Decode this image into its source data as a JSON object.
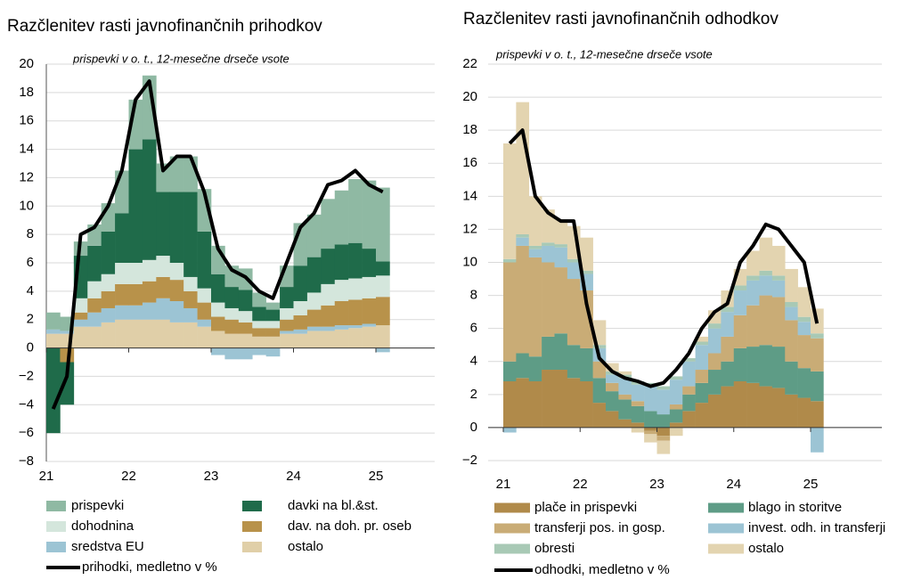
{
  "chart_data": [
    {
      "type": "stacked_bar",
      "title": "Razčlenitev rasti javnofinančnih prihodkov",
      "subtitle": "prispevki v o. t., 12-mesečne drseče vsote",
      "categories": [
        "21",
        null,
        null,
        null,
        null,
        null,
        "22",
        null,
        null,
        null,
        null,
        null,
        "23",
        null,
        null,
        null,
        null,
        null,
        "24",
        null,
        null,
        null,
        null,
        null,
        "25"
      ],
      "ylim": [
        -8,
        20
      ],
      "yticks": [
        {
          "value": -8,
          "label": "−8"
        },
        {
          "value": -6,
          "label": "−6"
        },
        {
          "value": -4,
          "label": "−4"
        },
        {
          "value": -2,
          "label": "−2"
        },
        0,
        2,
        4,
        6,
        8,
        10,
        12,
        14,
        16,
        18,
        20
      ],
      "grid": true,
      "series": [
        {
          "name": "ostalo",
          "color": "#e0cfa8",
          "values": [
            1,
            1,
            1.5,
            1.5,
            1.8,
            2,
            2,
            2,
            2,
            1.8,
            1.8,
            1.5,
            1.2,
            1,
            1,
            0.8,
            0.8,
            1,
            1,
            1.2,
            1.2,
            1.3,
            1.4,
            1.5,
            1.6
          ]
        },
        {
          "name": "sredstva EU",
          "color": "#9cc4d4",
          "values": [
            0.3,
            0.2,
            0.5,
            1,
            1,
            1,
            1,
            1.2,
            1.5,
            1.5,
            1,
            0.5,
            -0.5,
            -0.8,
            -0.8,
            -0.5,
            -0.6,
            0.2,
            0.3,
            0.3,
            0.3,
            0.3,
            0.2,
            0.2,
            -0.3
          ]
        },
        {
          "name": "dav. na doh. pr. oseb",
          "color": "#b8924a",
          "values": [
            0,
            -1,
            0.5,
            1,
            1.2,
            1.5,
            1.5,
            1.5,
            1.5,
            1.5,
            1.2,
            1.2,
            1,
            1,
            0.8,
            0.6,
            0.6,
            0.8,
            1,
            1.2,
            1.5,
            1.7,
            1.8,
            1.8,
            2
          ]
        },
        {
          "name": "dohodnina",
          "color": "#d4e6dc",
          "values": [
            0,
            0,
            1,
            1.2,
            1.2,
            1.5,
            1.5,
            1.5,
            1.5,
            1.2,
            1,
            1,
            1,
            0.8,
            0.8,
            0.5,
            0.5,
            0.8,
            1,
            1.2,
            1.5,
            1.5,
            1.5,
            1.5,
            1.5
          ]
        },
        {
          "name": "davki na bl.&st.",
          "color": "#1f6b4a",
          "values": [
            -6,
            -3,
            3,
            2.5,
            3,
            3.5,
            8,
            8.5,
            4.5,
            5,
            6,
            4,
            2,
            1.5,
            1.5,
            1,
            0.8,
            1.5,
            2.5,
            2.5,
            2.5,
            2.5,
            2.5,
            2,
            1
          ]
        },
        {
          "name": "prispevki",
          "color": "#8fb9a3",
          "values": [
            1.2,
            1,
            1,
            1.5,
            2,
            3,
            3.5,
            4.5,
            2,
            2.5,
            2.5,
            3,
            2,
            1.5,
            1.5,
            1,
            0.5,
            1.5,
            3,
            3,
            3.5,
            3.8,
            4.5,
            4.8,
            5.2
          ]
        },
        {
          "name": "prihodki, medletno v %",
          "type": "line",
          "color": "#000000",
          "values": [
            -4.3,
            -2,
            8,
            8.5,
            10,
            12.5,
            17.5,
            18.8,
            12.5,
            13.5,
            13.5,
            11,
            7,
            5.5,
            5,
            4,
            3.5,
            6,
            8.5,
            9.5,
            11.5,
            11.8,
            12.5,
            11.5,
            11
          ]
        }
      ]
    },
    {
      "type": "stacked_bar",
      "title": "Razčlenitev rasti javnofinančnih odhodkov",
      "subtitle": "prispevki v o. t., 12-mesečne drseče vsote",
      "categories": [
        "21",
        null,
        null,
        null,
        null,
        null,
        "22",
        null,
        null,
        null,
        null,
        null,
        "23",
        null,
        null,
        null,
        null,
        null,
        "24",
        null,
        null,
        null,
        null,
        null,
        "25"
      ],
      "ylim": [
        -2,
        22
      ],
      "yticks": [
        {
          "value": -2,
          "label": "−2"
        },
        0,
        2,
        4,
        6,
        8,
        10,
        12,
        14,
        16,
        18,
        20,
        22
      ],
      "grid": true,
      "series": [
        {
          "name": "plače in prispevki",
          "color": "#b08a4a",
          "values": [
            2.8,
            3,
            2.8,
            3.5,
            3.5,
            3,
            2.8,
            1.5,
            1,
            0.5,
            0.3,
            -0.2,
            -0.5,
            0.3,
            1,
            1.5,
            2,
            2.5,
            2.8,
            2.7,
            2.5,
            2.4,
            2,
            1.8,
            1.6
          ]
        },
        {
          "name": "blago in storitve",
          "color": "#5e9c86",
          "values": [
            1.2,
            1.5,
            1.5,
            2,
            2.2,
            2,
            2,
            1.5,
            1.2,
            1.2,
            1,
            1,
            0.8,
            0.8,
            1,
            1.2,
            1.5,
            1.5,
            2,
            2.2,
            2.5,
            2.5,
            2,
            1.8,
            1.8
          ]
        },
        {
          "name": "transferji pos. in gosp.",
          "color": "#c9ac76",
          "values": [
            6,
            6.5,
            6,
            4.5,
            4,
            4,
            3.5,
            1,
            0.5,
            0.3,
            0.3,
            -0.2,
            -0.3,
            0.3,
            0.5,
            0.8,
            1,
            1.5,
            2,
            2.5,
            3,
            3,
            2.5,
            2,
            2
          ]
        },
        {
          "name": "invest. odh. in transferji",
          "color": "#9cc4d4",
          "values": [
            -0.3,
            0.5,
            0.5,
            1,
            1.2,
            1,
            1,
            0.8,
            0.5,
            1,
            1,
            1.5,
            1.5,
            1.5,
            1.5,
            1.5,
            1.5,
            1.5,
            1.5,
            1.5,
            1.2,
            1,
            0.8,
            0.8,
            -1.5
          ]
        },
        {
          "name": "obresti",
          "color": "#a8c9b5",
          "values": [
            0.2,
            0.2,
            0.2,
            0.2,
            0.2,
            0.2,
            0.2,
            0.2,
            0.2,
            0.2,
            0.2,
            0.2,
            0.2,
            0.2,
            0.2,
            0.2,
            0.3,
            0.3,
            0.3,
            0.3,
            0.3,
            0.3,
            0.3,
            0.3,
            0.3
          ]
        },
        {
          "name": "ostalo",
          "color": "#e3d4b0",
          "values": [
            7,
            8,
            3,
            2,
            1.5,
            2,
            2,
            1.5,
            0.5,
            0.2,
            -0.3,
            -0.5,
            -0.8,
            -0.5,
            0,
            0.3,
            0.8,
            1,
            1,
            1.5,
            2,
            1.8,
            2,
            1.8,
            1.5
          ]
        },
        {
          "name": "odhodki, medletno v %",
          "type": "line",
          "color": "#000000",
          "values": [
            17.2,
            18,
            14,
            13,
            12.5,
            12.5,
            7.5,
            4.2,
            3.4,
            3,
            2.8,
            2.5,
            2.7,
            3.5,
            4.5,
            6,
            7,
            7.5,
            10,
            11,
            12.3,
            12,
            11,
            10,
            6.3
          ]
        }
      ]
    }
  ]
}
